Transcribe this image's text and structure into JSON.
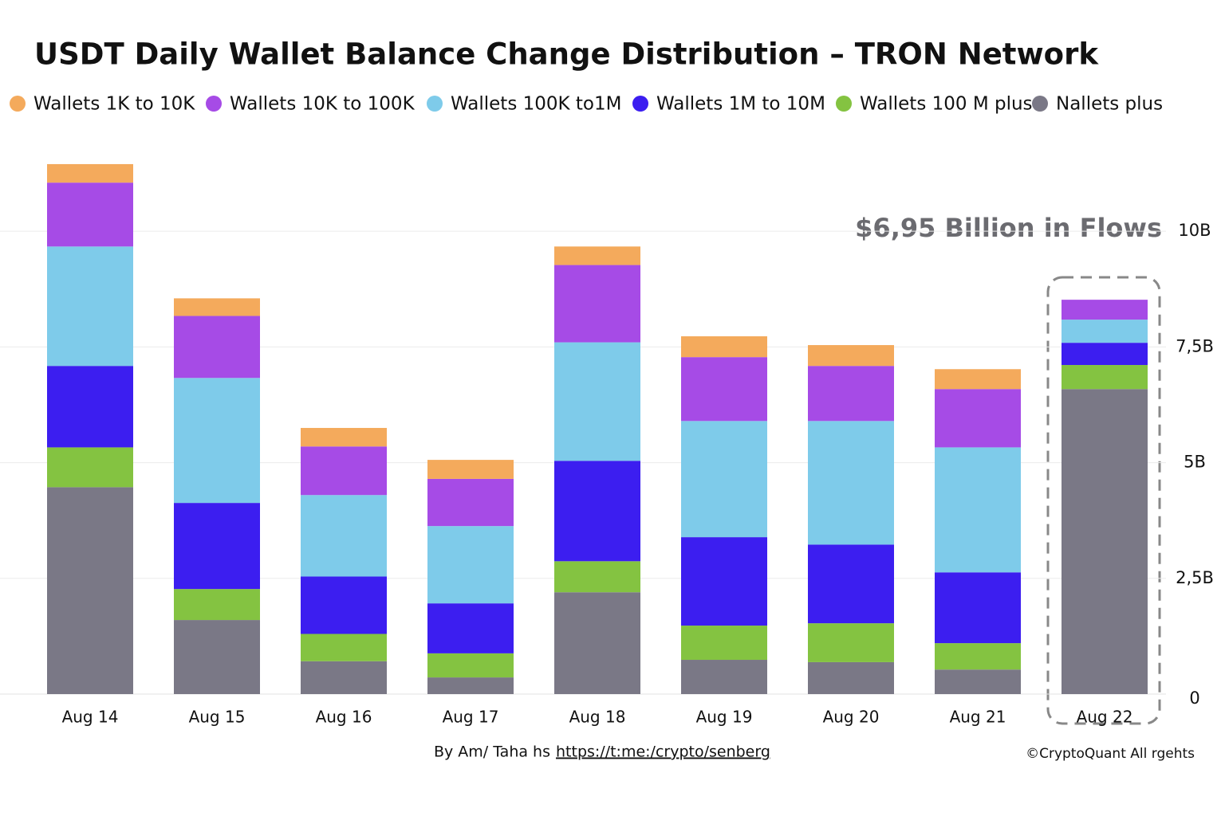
{
  "chart_data": {
    "type": "stacked-bar",
    "title": "USDT Daily Wallet Balance Change Distribution – TRON Network",
    "categories": [
      "Aug 14",
      "Aug 15",
      "Aug 16",
      "Aug 17",
      "Aug 18",
      "Aug 19",
      "Aug 20",
      "Aug 21",
      "Aug 22"
    ],
    "series": [
      {
        "name": "Nallets plus",
        "color": "#7a7886",
        "values": [
          4.47,
          1.6,
          0.71,
          0.36,
          2.2,
          0.74,
          0.69,
          0.53,
          6.59
        ]
      },
      {
        "name": "Wallets 100 M plus",
        "color": "#84c341",
        "values": [
          0.86,
          0.67,
          0.59,
          0.52,
          0.67,
          0.74,
          0.84,
          0.57,
          0.52
        ]
      },
      {
        "name": "Wallets 1M to 10M",
        "color": "#3c1ef0",
        "values": [
          1.76,
          1.86,
          1.24,
          1.08,
          2.17,
          1.91,
          1.7,
          1.53,
          0.48
        ]
      },
      {
        "name": "Wallets 100K to1M",
        "color": "#7ecbea",
        "values": [
          2.58,
          2.7,
          1.76,
          1.67,
          2.56,
          2.51,
          2.67,
          2.7,
          0.5
        ]
      },
      {
        "name": "Wallets 10K to 100K",
        "color": "#a64be6",
        "values": [
          1.38,
          1.34,
          1.05,
          1.02,
          1.67,
          1.38,
          1.19,
          1.26,
          0.43
        ]
      },
      {
        "name": "Wallets 1K to 10K",
        "color": "#f4aa5c",
        "values": [
          0.4,
          0.38,
          0.4,
          0.41,
          0.4,
          0.45,
          0.45,
          0.43,
          0
        ]
      }
    ],
    "ylim": [
      0,
      12
    ],
    "yticks": [
      0,
      {
        "value": 2.5,
        "label": "2,5B"
      },
      {
        "value": 5,
        "label": "5B"
      },
      {
        "value": 7.5,
        "label": "7,5B"
      },
      {
        "value": 10,
        "label": "10B"
      }
    ],
    "grid": true,
    "annotation": "$6,95 Billion in Flows",
    "credit": "By Am/ Taha hs",
    "link": "https://t:me:/crypto/senberg",
    "copyright": "©CryptoQuant All rgehts"
  }
}
